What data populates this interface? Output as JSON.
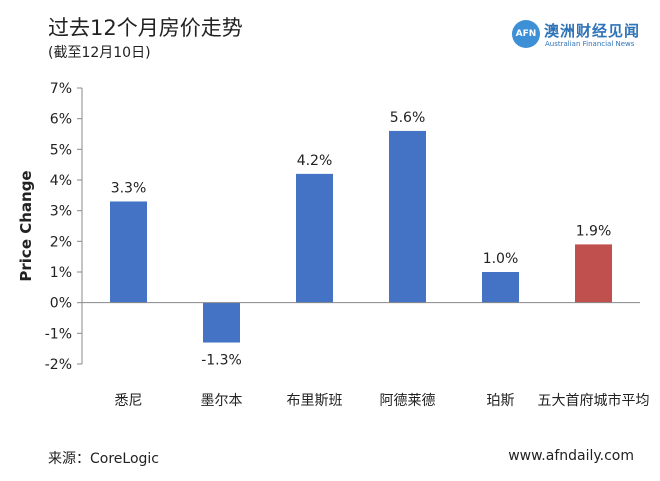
{
  "header": {
    "title": "过去12个月房价走势",
    "subtitle": "(截至12月10日)"
  },
  "logo": {
    "badge": "AFN",
    "name_cn": "澳洲财经见闻",
    "name_en": "Australian Financial News"
  },
  "footer": {
    "source": "来源：CoreLogic",
    "website": "www.afndaily.com"
  },
  "colors": {
    "bar_default": "#4472c4",
    "bar_highlight": "#c0504d",
    "axis": "#888888"
  },
  "chart_data": {
    "type": "bar",
    "title": "过去12个月房价走势",
    "subtitle": "(截至12月10日)",
    "ylabel": "Price Change",
    "xlabel": "",
    "categories": [
      "悉尼",
      "墨尔本",
      "布里斯班",
      "阿德莱德",
      "珀斯",
      "五大首府城市平均"
    ],
    "values": [
      3.3,
      -1.3,
      4.2,
      5.6,
      1.0,
      1.9
    ],
    "data_labels": [
      "3.3%",
      "-1.3%",
      "4.2%",
      "5.6%",
      "1.0%",
      "1.9%"
    ],
    "highlight_index": 5,
    "ylim": [
      -2,
      7
    ],
    "yticks": [
      7,
      6,
      5,
      4,
      3,
      2,
      1,
      0,
      -1,
      -2
    ],
    "ytick_labels": [
      "7%",
      "6%",
      "5%",
      "4%",
      "3%",
      "2%",
      "1%",
      "0%",
      "-1%",
      "-2%"
    ],
    "grid": false,
    "legend": "none"
  }
}
